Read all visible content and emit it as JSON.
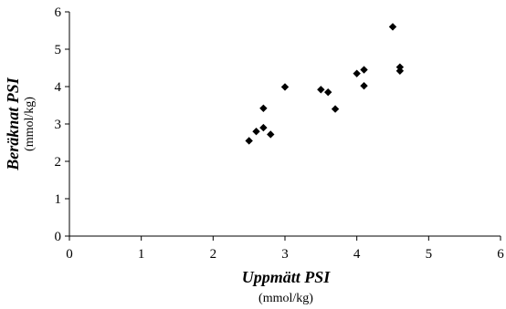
{
  "chart_data": {
    "type": "scatter",
    "title": "",
    "xlabel": "Uppmätt PSI",
    "xunit": "(mmol/kg)",
    "ylabel": "Beräknat PSI",
    "yunit": "(mmol/kg)",
    "xlim": [
      0,
      6
    ],
    "ylim": [
      0,
      6
    ],
    "xticks": [
      "0",
      "1",
      "2",
      "3",
      "4",
      "5",
      "6"
    ],
    "yticks": [
      "0",
      "1",
      "2",
      "3",
      "4",
      "5",
      "6"
    ],
    "grid": false,
    "legend": "none",
    "marker": "diamond",
    "marker_color": "#000000",
    "points": [
      {
        "x": 2.5,
        "y": 2.55
      },
      {
        "x": 2.6,
        "y": 2.8
      },
      {
        "x": 2.7,
        "y": 2.9
      },
      {
        "x": 2.7,
        "y": 3.42
      },
      {
        "x": 2.8,
        "y": 2.72
      },
      {
        "x": 3.0,
        "y": 3.99
      },
      {
        "x": 3.5,
        "y": 3.92
      },
      {
        "x": 3.6,
        "y": 3.85
      },
      {
        "x": 3.7,
        "y": 3.4
      },
      {
        "x": 4.0,
        "y": 4.35
      },
      {
        "x": 4.1,
        "y": 4.45
      },
      {
        "x": 4.1,
        "y": 4.02
      },
      {
        "x": 4.5,
        "y": 5.6
      },
      {
        "x": 4.6,
        "y": 4.52
      },
      {
        "x": 4.6,
        "y": 4.42
      }
    ]
  }
}
